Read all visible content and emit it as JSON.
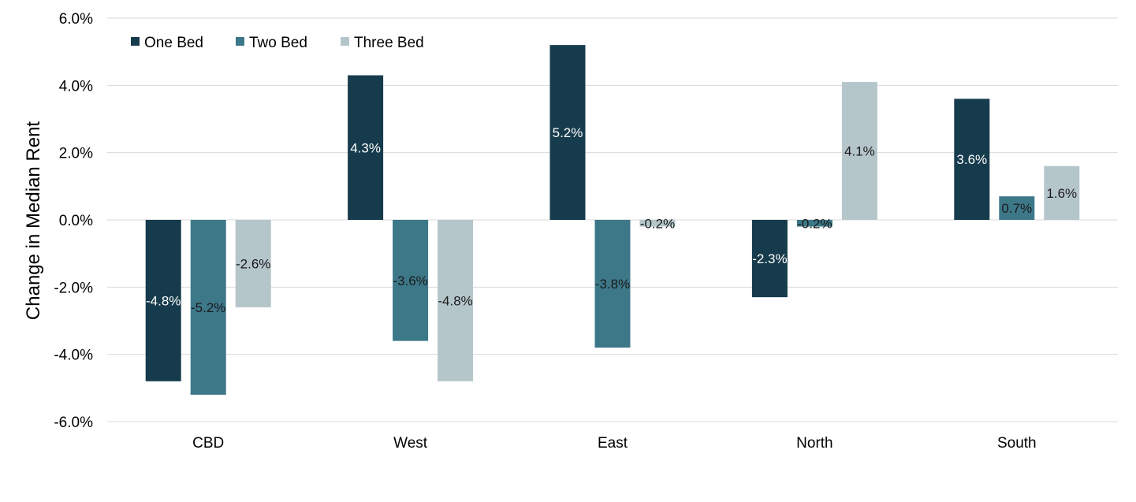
{
  "chart_data": {
    "type": "bar",
    "title": "",
    "xlabel": "",
    "ylabel": "Change in Median Rent",
    "ylim": [
      -6,
      6
    ],
    "ytick_step": 2,
    "ytick_format": "percent_1dp",
    "grid": true,
    "legend_position": "top-left",
    "categories": [
      "CBD",
      "West",
      "East",
      "North",
      "South"
    ],
    "series": [
      {
        "name": "One Bed",
        "color": "#163b4c",
        "label_color": "#ffffff",
        "values": [
          -4.8,
          4.3,
          5.2,
          -2.3,
          3.6
        ]
      },
      {
        "name": "Two Bed",
        "color": "#3d7889",
        "label_color": "#1a1a1a",
        "values": [
          -5.2,
          -3.6,
          -3.8,
          -0.2,
          0.7
        ]
      },
      {
        "name": "Three Bed",
        "color": "#b5c6cb",
        "label_color": "#1a1a1a",
        "values": [
          -2.6,
          -4.8,
          -0.2,
          4.1,
          1.6
        ]
      }
    ]
  }
}
